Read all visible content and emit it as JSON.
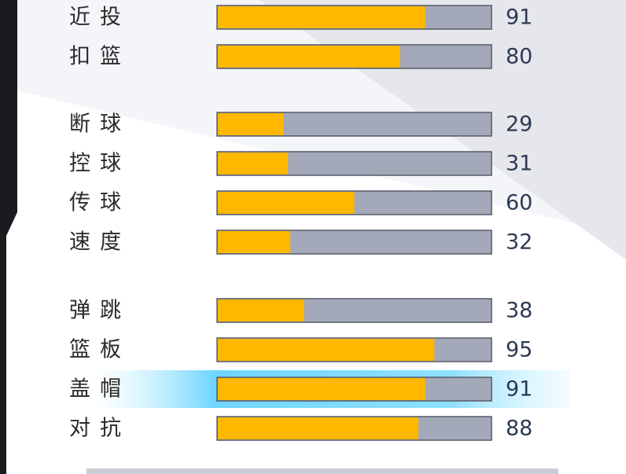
{
  "chart_data": {
    "type": "bar",
    "orientation": "horizontal",
    "categories": [
      "近投",
      "扣篮",
      "断球",
      "控球",
      "传球",
      "速度",
      "弹跳",
      "篮板",
      "盖帽",
      "对抗"
    ],
    "values": [
      91,
      80,
      29,
      31,
      60,
      32,
      38,
      95,
      91,
      88
    ],
    "color": "#ffb800",
    "track_color": "#a4a9ba",
    "xlim": [
      0,
      120
    ]
  }
}
